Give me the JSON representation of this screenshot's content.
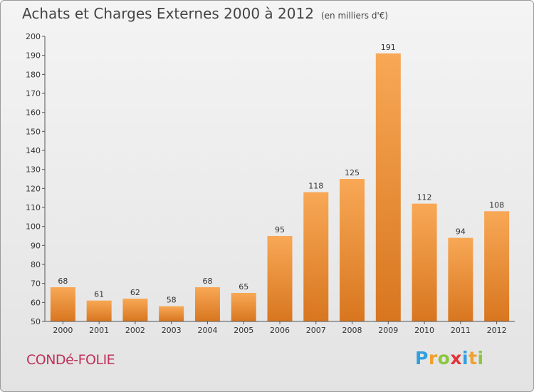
{
  "header": {
    "title": "Achats et Charges Externes 2000 à 2012",
    "subtitle": "(en milliers d'€)"
  },
  "footer": {
    "commune": "CONDé-FOLIE",
    "logo": "Proxiti"
  },
  "colors": {
    "bar_top": "#f8a856",
    "bar_bottom": "#d8761f",
    "commune_text": "#c0325c",
    "logo_letters": [
      "#2f9fe0",
      "#f0a030",
      "#8cc63f",
      "#e2343a",
      "#2f9fe0",
      "#f0a030",
      "#8cc63f"
    ]
  },
  "chart_data": {
    "type": "bar",
    "title": "Achats et Charges Externes 2000 à 2012",
    "subtitle": "(en milliers d'€)",
    "categories": [
      "2000",
      "2001",
      "2002",
      "2003",
      "2004",
      "2005",
      "2006",
      "2007",
      "2008",
      "2009",
      "2010",
      "2011",
      "2012"
    ],
    "values": [
      68,
      61,
      62,
      58,
      68,
      65,
      95,
      118,
      125,
      191,
      112,
      94,
      108
    ],
    "ylim": [
      50,
      200
    ],
    "yticks": [
      50,
      60,
      70,
      80,
      90,
      100,
      110,
      120,
      130,
      140,
      150,
      160,
      170,
      180,
      190,
      200
    ],
    "grid": false,
    "legend": "none"
  }
}
